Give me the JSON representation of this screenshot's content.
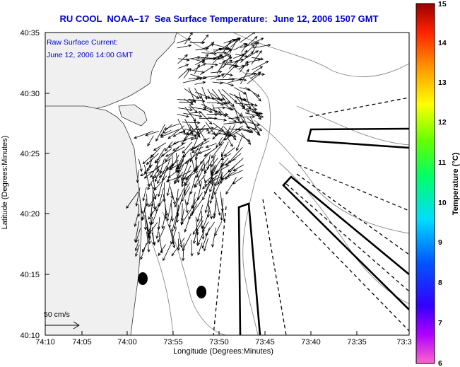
{
  "title": "RU COOL  NOAA–17  Sea Surface Temperature:  June 12, 2006 1507 GMT",
  "annotation": {
    "line1": "Raw Surface Current:",
    "line2": "June 12, 2006 14:00 GMT",
    "color": "#0000c8"
  },
  "scale_label": "50 cm/s",
  "axes": {
    "xlabel": "Longitude (Degrees:Minutes)",
    "ylabel": "Latitude (Degrees:Minutes)",
    "xticks": [
      "74:10",
      "74:05",
      "74:00",
      "73:55",
      "73:50",
      "73:45",
      "73:40",
      "73:35",
      "73:3"
    ],
    "yticks": [
      "40:35",
      "40:30",
      "40:25",
      "40:20",
      "40:15",
      "40:10"
    ]
  },
  "colorbar": {
    "label": "Temperature (°C)",
    "ticks": [
      "15",
      "14",
      "13",
      "12",
      "11",
      "10",
      "9",
      "8",
      "7",
      "6"
    ]
  }
}
